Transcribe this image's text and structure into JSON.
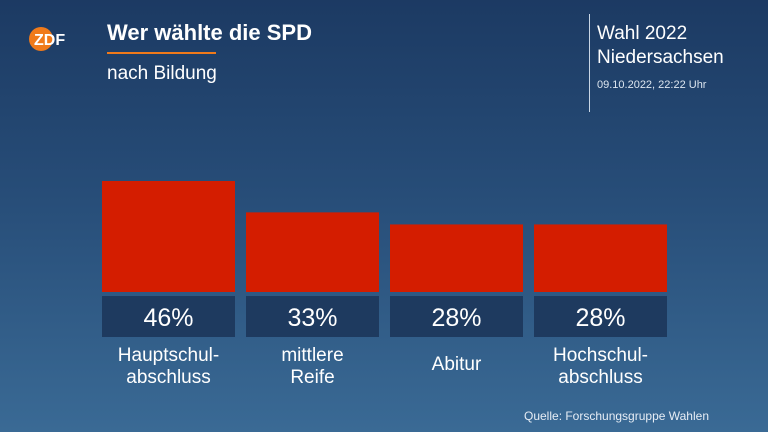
{
  "header": {
    "title": "Wer wählte die SPD",
    "subtitle": "nach Bildung",
    "logo_text": "ZDF",
    "accent_color": "#f07a1a"
  },
  "election": {
    "title": "Wahl 2022 Niedersachsen",
    "timestamp": "09.10.2022, 22:22 Uhr"
  },
  "source": "Quelle: Forschungsgruppe Wahlen",
  "chart_data": {
    "type": "bar",
    "categories": [
      "Hauptschul-\nabschluss",
      "mittlere\nReife",
      "Abitur",
      "Hochschul-\nabschluss"
    ],
    "values": [
      46,
      33,
      28,
      28
    ],
    "value_labels": [
      "46%",
      "33%",
      "28%",
      "28%"
    ],
    "ylim": [
      0,
      46
    ],
    "bar_color": "#d41d00",
    "label_box_color": "#1e3a5f",
    "grid": false
  }
}
